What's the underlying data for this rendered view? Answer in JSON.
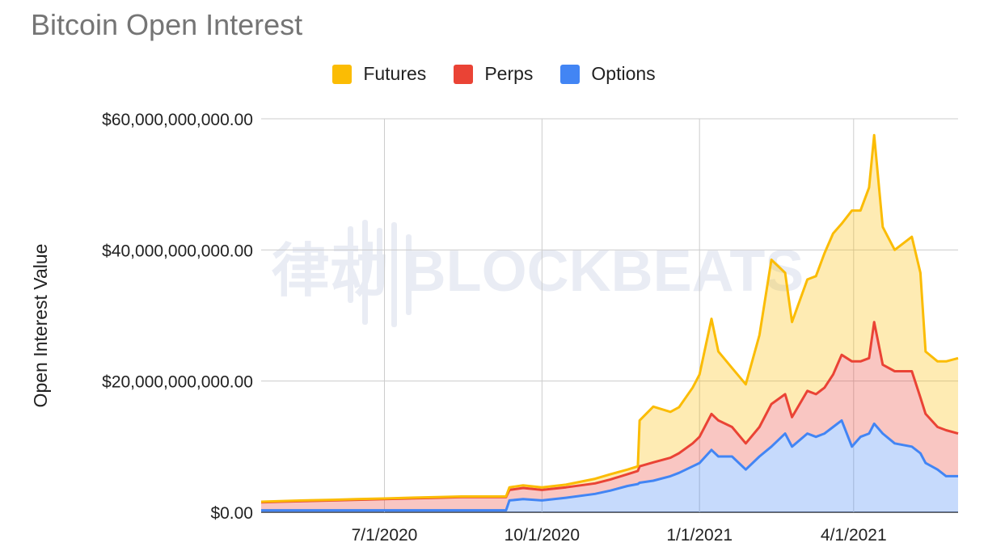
{
  "chart_data": {
    "type": "area",
    "stacked": true,
    "title": "Bitcoin Open Interest",
    "xlabel": "",
    "ylabel": "Open Interest Value",
    "ylim": [
      0,
      60000000000
    ],
    "yticks": [
      0,
      20000000000,
      40000000000,
      60000000000
    ],
    "ytick_labels": [
      "$0.00",
      "$20,000,000,000.00",
      "$40,000,000,000.00",
      "$60,000,000,000.00"
    ],
    "xlim": [
      "2020-04-20",
      "2021-06-01"
    ],
    "xticks": [
      "2020-07-01",
      "2020-10-01",
      "2021-01-01",
      "2021-04-01"
    ],
    "xtick_labels": [
      "7/1/2020",
      "10/1/2020",
      "1/1/2021",
      "4/1/2021"
    ],
    "grid": true,
    "legend_position": "top-center",
    "watermark": "律动 BLOCKBEATS",
    "x": [
      "2020-04-20",
      "2020-05-01",
      "2020-05-15",
      "2020-06-01",
      "2020-06-15",
      "2020-07-01",
      "2020-07-15",
      "2020-08-01",
      "2020-08-15",
      "2020-09-01",
      "2020-09-10",
      "2020-09-12",
      "2020-09-20",
      "2020-10-01",
      "2020-10-15",
      "2020-11-01",
      "2020-11-10",
      "2020-11-20",
      "2020-11-26",
      "2020-11-27",
      "2020-12-05",
      "2020-12-15",
      "2020-12-20",
      "2020-12-28",
      "2021-01-01",
      "2021-01-08",
      "2021-01-12",
      "2021-01-20",
      "2021-01-28",
      "2021-02-05",
      "2021-02-12",
      "2021-02-20",
      "2021-02-24",
      "2021-03-05",
      "2021-03-10",
      "2021-03-15",
      "2021-03-20",
      "2021-03-25",
      "2021-03-31",
      "2021-04-05",
      "2021-04-10",
      "2021-04-13",
      "2021-04-18",
      "2021-04-25",
      "2021-05-05",
      "2021-05-10",
      "2021-05-13",
      "2021-05-20",
      "2021-05-25",
      "2021-06-01"
    ],
    "series": [
      {
        "name": "Options",
        "color": "#4285f4",
        "values": [
          0.3,
          0.3,
          0.3,
          0.3,
          0.3,
          0.3,
          0.3,
          0.3,
          0.3,
          0.3,
          0.3,
          1.8,
          2.0,
          1.8,
          2.2,
          2.8,
          3.3,
          4.0,
          4.3,
          4.5,
          4.8,
          5.5,
          6.0,
          7.0,
          7.5,
          9.5,
          8.5,
          8.5,
          6.5,
          8.5,
          10.0,
          12.0,
          10.0,
          12.0,
          11.5,
          12.0,
          13.0,
          14.0,
          10.0,
          11.5,
          12.0,
          13.5,
          12.0,
          10.5,
          10.0,
          9.0,
          7.5,
          6.5,
          5.5,
          5.5
        ]
      },
      {
        "name": "Perps",
        "color": "#ea4335",
        "values": [
          1.2,
          1.3,
          1.4,
          1.5,
          1.6,
          1.7,
          1.8,
          1.9,
          2.0,
          2.0,
          2.0,
          1.6,
          1.7,
          1.6,
          1.6,
          1.6,
          1.7,
          1.8,
          2.0,
          2.5,
          2.8,
          2.8,
          3.0,
          3.5,
          4.0,
          5.5,
          5.5,
          4.5,
          4.0,
          4.5,
          6.5,
          6.0,
          4.5,
          6.5,
          6.5,
          7.0,
          8.0,
          10.0,
          13.0,
          11.5,
          11.5,
          15.5,
          10.5,
          11.0,
          11.5,
          8.5,
          7.5,
          6.5,
          7.0,
          6.5
        ]
      },
      {
        "name": "Futures",
        "color": "#fbbc04",
        "values": [
          0.1,
          0.1,
          0.1,
          0.1,
          0.1,
          0.1,
          0.1,
          0.1,
          0.1,
          0.1,
          0.1,
          0.4,
          0.4,
          0.4,
          0.4,
          0.7,
          0.8,
          0.7,
          0.7,
          7.0,
          8.5,
          7.0,
          7.0,
          8.5,
          9.5,
          14.5,
          10.5,
          9.0,
          9.0,
          14.0,
          22.0,
          18.5,
          14.5,
          17.0,
          18.0,
          20.5,
          21.5,
          20.0,
          23.0,
          23.0,
          26.0,
          28.5,
          21.0,
          18.5,
          20.5,
          19.0,
          9.5,
          10.0,
          10.5,
          11.5
        ]
      }
    ]
  }
}
